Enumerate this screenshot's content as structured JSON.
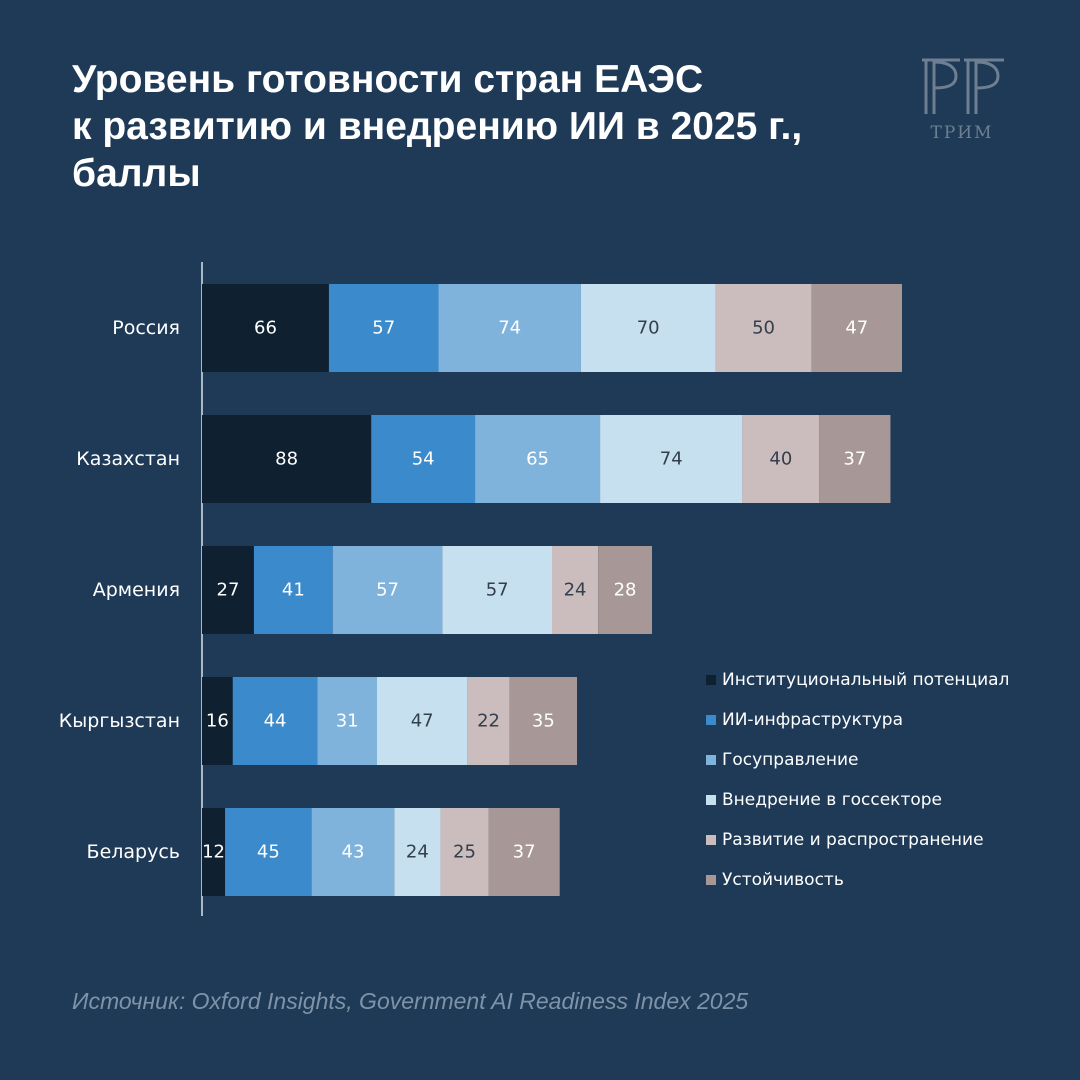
{
  "title": {
    "lines": [
      "Уровень готовности стран ЕАЭС",
      "к развитию и внедрению ИИ в 2025 г.,",
      "баллы"
    ]
  },
  "logo": {
    "text": "ТРИМ"
  },
  "source": "Источник: Oxford Insights, Government AI Readiness Index 2025",
  "chart_data": {
    "type": "bar",
    "orientation": "horizontal",
    "stacked": true,
    "categories": [
      "Россия",
      "Казахстан",
      "Армения",
      "Кыргызстан",
      "Беларусь"
    ],
    "series": [
      {
        "name": "Институциональный потенциал",
        "color": "#0f2031",
        "label_color": "#ffffff",
        "values": [
          66,
          88,
          27,
          16,
          12
        ]
      },
      {
        "name": "ИИ-инфраструктура",
        "color": "#3b8acb",
        "label_color": "#ffffff",
        "values": [
          57,
          54,
          41,
          44,
          45
        ]
      },
      {
        "name": "Госуправление",
        "color": "#80b3dc",
        "label_color": "#ffffff",
        "values": [
          74,
          65,
          57,
          31,
          43
        ]
      },
      {
        "name": "Внедрение в госсекторе",
        "color": "#c6e0f0",
        "label_color": "#333f4c",
        "values": [
          70,
          74,
          57,
          47,
          24
        ]
      },
      {
        "name": "Развитие и распространение",
        "color": "#cbbcbd",
        "label_color": "#333f4c",
        "values": [
          50,
          40,
          24,
          22,
          25
        ]
      },
      {
        "name": "Устойчивость",
        "color": "#a79796",
        "label_color": "#ffffff",
        "values": [
          47,
          37,
          28,
          35,
          37
        ]
      }
    ],
    "xlim": [
      0,
      364
    ],
    "grid": false,
    "data_labels": true,
    "legend": "right"
  }
}
